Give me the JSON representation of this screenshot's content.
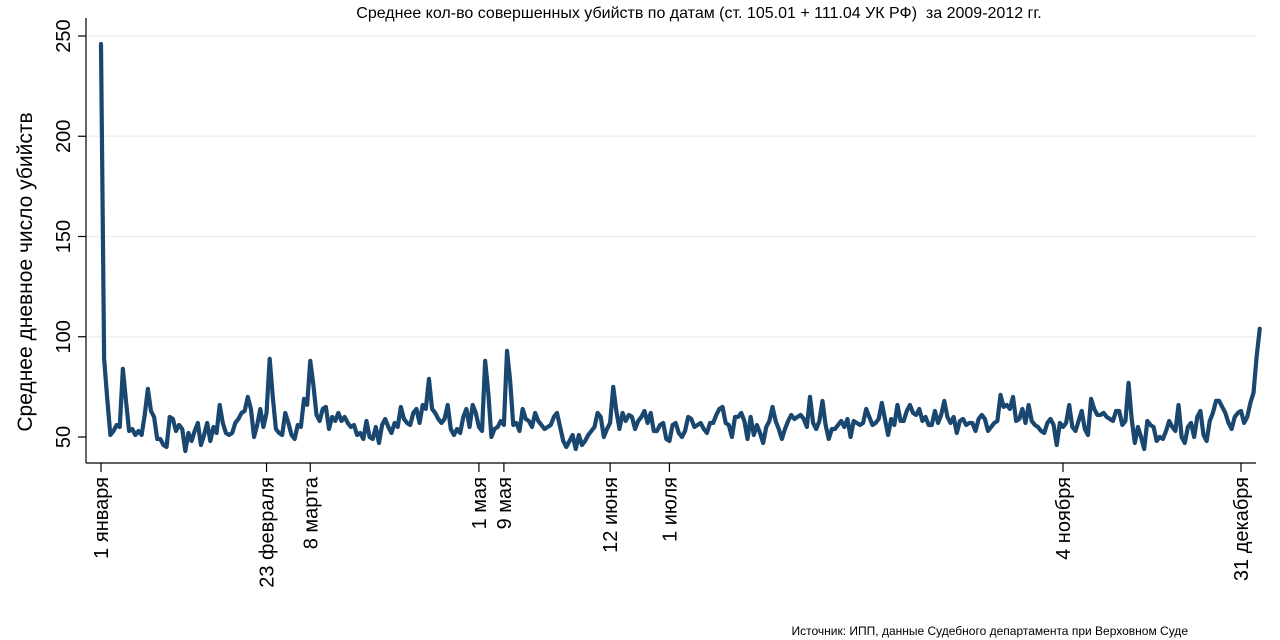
{
  "chart_data": {
    "type": "line",
    "title": "Среднее кол-во совершенных убийств по датам (ст. 105.01 + 111.04 УК РФ)  за 2009-2012 гг.",
    "ylabel": "Среднее дневное число убийств",
    "xlabel": "",
    "source": "Источник: ИПП, данные Судебного департамента при Верховном Суде",
    "ylim": [
      40,
      250
    ],
    "y_ticks": [
      50,
      100,
      150,
      200,
      250
    ],
    "x_ticks": [
      {
        "day": 1,
        "label": "1 января"
      },
      {
        "day": 54,
        "label": "23 февраля"
      },
      {
        "day": 68,
        "label": "8 марта"
      },
      {
        "day": 122,
        "label": "1 мая"
      },
      {
        "day": 130,
        "label": "9 мая"
      },
      {
        "day": 164,
        "label": "12 июня"
      },
      {
        "day": 183,
        "label": "1 июля"
      },
      {
        "day": 309,
        "label": "4 ноября"
      },
      {
        "day": 366,
        "label": "31 декабря"
      }
    ],
    "grid": true,
    "line_color": "#1a476f",
    "series": [
      {
        "x_start": 1,
        "values": [
          246,
          89,
          69,
          51,
          53,
          56,
          55,
          84,
          68,
          53,
          54,
          51,
          53,
          51,
          61,
          74,
          63,
          60,
          49,
          49,
          46,
          45,
          60,
          59,
          53,
          56,
          54,
          43,
          52,
          48,
          53,
          57,
          46,
          51,
          57,
          48,
          55,
          52,
          66,
          57,
          52,
          51,
          52,
          57,
          59,
          62,
          63,
          70,
          64,
          50,
          56,
          64,
          55,
          62,
          89,
          70,
          54,
          52,
          51,
          62,
          57,
          51,
          49,
          56,
          55,
          69,
          66,
          88,
          76,
          61,
          58,
          64,
          65,
          54,
          60,
          58,
          62,
          58,
          60,
          57,
          55,
          56,
          51,
          52,
          49,
          58,
          50,
          49,
          55,
          47,
          56,
          59,
          55,
          52,
          57,
          55,
          65,
          59,
          57,
          56,
          62,
          64,
          57,
          66,
          64,
          79,
          64,
          62,
          59,
          57,
          59,
          66,
          54,
          51,
          54,
          52,
          60,
          64,
          55,
          66,
          62,
          55,
          53,
          88,
          72,
          50,
          54,
          55,
          58,
          56,
          93,
          78,
          56,
          57,
          53,
          64,
          59,
          58,
          55,
          62,
          58,
          56,
          54,
          55,
          56,
          60,
          62,
          55,
          48,
          45,
          48,
          51,
          44,
          51,
          46,
          48,
          51,
          53,
          55,
          62,
          60,
          50,
          54,
          57,
          75,
          63,
          54,
          62,
          58,
          61,
          60,
          54,
          58,
          60,
          63,
          57,
          62,
          53,
          53,
          56,
          57,
          49,
          48,
          56,
          57,
          52,
          50,
          53,
          60,
          59,
          55,
          56,
          57,
          54,
          52,
          57,
          57,
          61,
          64,
          65,
          57,
          56,
          50,
          60,
          60,
          62,
          58,
          49,
          60,
          51,
          56,
          52,
          47,
          55,
          58,
          65,
          58,
          54,
          49,
          54,
          58,
          61,
          59,
          60,
          61,
          59,
          55,
          70,
          57,
          54,
          58,
          68,
          56,
          49,
          54,
          54,
          56,
          58,
          55,
          59,
          50,
          58,
          57,
          56,
          57,
          64,
          60,
          56,
          57,
          59,
          67,
          59,
          51,
          59,
          56,
          66,
          58,
          58,
          63,
          66,
          62,
          61,
          64,
          58,
          60,
          56,
          56,
          63,
          57,
          61,
          68,
          60,
          57,
          60,
          52,
          58,
          59,
          56,
          57,
          57,
          53,
          59,
          61,
          59,
          53,
          55,
          57,
          58,
          71,
          65,
          66,
          64,
          70,
          58,
          59,
          64,
          57,
          66,
          58,
          56,
          55,
          53,
          52,
          57,
          59,
          56,
          46,
          57,
          55,
          57,
          66,
          55,
          53,
          58,
          63,
          54,
          51,
          69,
          64,
          61,
          61,
          62,
          60,
          59,
          58,
          63,
          63,
          56,
          58,
          77,
          59,
          47,
          55,
          50,
          44,
          58,
          56,
          55,
          48,
          50,
          49,
          53,
          58,
          55,
          53,
          66,
          50,
          47,
          55,
          57,
          50,
          60,
          63,
          51,
          48,
          58,
          62,
          68,
          68,
          65,
          62,
          57,
          54,
          60,
          62,
          63,
          57,
          60,
          67,
          72,
          90,
          104
        ]
      }
    ]
  }
}
